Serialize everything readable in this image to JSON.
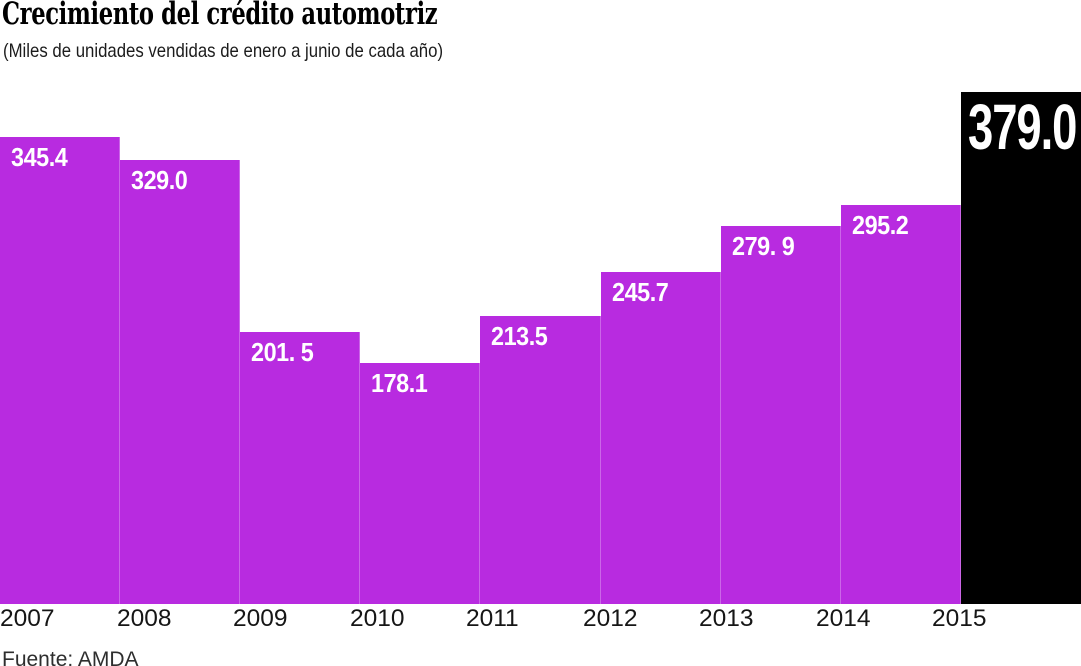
{
  "header": {
    "title": "Crecimiento del crédito automotriz",
    "subtitle": "(Miles de unidades vendidas de enero a junio de cada año)"
  },
  "source_note": "Fuente: AMDA",
  "colors": {
    "bar": "#b82be0",
    "highlight_bar": "#000000",
    "value_label": "#ffffff",
    "axis_label": "#161616",
    "background": "#ffffff"
  },
  "chart_data": {
    "type": "bar",
    "title": "Crecimiento del crédito automotriz",
    "subtitle": "(Miles de unidades vendidas de enero a junio de cada año)",
    "categories": [
      "2007",
      "2008",
      "2009",
      "2010",
      "2011",
      "2012",
      "2013",
      "2014",
      "2015"
    ],
    "values": [
      345.4,
      329.0,
      201.5,
      178.1,
      213.5,
      245.7,
      279.9,
      295.2,
      379.0
    ],
    "value_labels": [
      "345.4",
      "329.0",
      "201. 5",
      "178.1",
      "213.5",
      "245.7",
      "279. 9",
      "295.2",
      "379.0"
    ],
    "highlight_index": 8,
    "highlight_color_meaning": "2015 destacado en negro",
    "xlabel": "",
    "ylabel": "",
    "ylim": [
      0,
      379
    ],
    "grid": false,
    "legend": false,
    "value_labels_position": "inside-top-left",
    "source": "Fuente: AMDA"
  }
}
